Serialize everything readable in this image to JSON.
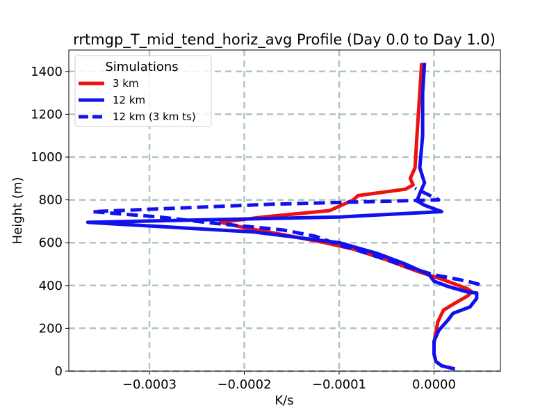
{
  "chart_data": {
    "type": "line",
    "title": "rrtmgp_T_mid_tend_horiz_avg Profile (Day 0.0 to Day 1.0)",
    "xlabel": "K/s",
    "ylabel": "Height (m)",
    "xlim": [
      -0.000385,
      7e-05
    ],
    "ylim": [
      0,
      1500
    ],
    "xticks": [
      -0.0003,
      -0.0002,
      -0.0001,
      0.0
    ],
    "xtick_labels": [
      "−0.0003",
      "−0.0002",
      "−0.0001",
      "0.0000"
    ],
    "yticks": [
      0,
      200,
      400,
      600,
      800,
      1000,
      1200,
      1400
    ],
    "ytick_labels": [
      "0",
      "200",
      "400",
      "600",
      "800",
      "1000",
      "1200",
      "1400"
    ],
    "grid": true,
    "legend": {
      "title": "Simulations",
      "placement": "top-left"
    },
    "series": [
      {
        "name": "3 km",
        "color": "#ee1111",
        "style": "solid",
        "points": [
          [
            2.2e-05,
            10
          ],
          [
            8e-06,
            25
          ],
          [
            2e-06,
            45
          ],
          [
            0.0,
            80
          ],
          [
            0.0,
            130
          ],
          [
            2e-06,
            180
          ],
          [
            4e-06,
            230
          ],
          [
            1e-05,
            285
          ],
          [
            2.5e-05,
            325
          ],
          [
            3.5e-05,
            350
          ],
          [
            4e-05,
            370
          ],
          [
            3.5e-05,
            385
          ],
          [
            8e-06,
            430
          ],
          [
            -2e-05,
            470
          ],
          [
            -5e-05,
            520
          ],
          [
            -8.5e-05,
            570
          ],
          [
            -0.000115,
            600
          ],
          [
            -0.00015,
            630
          ],
          [
            -0.0002,
            670
          ],
          [
            -0.000225,
            695
          ],
          [
            -0.00018,
            720
          ],
          [
            -0.00011,
            750
          ],
          [
            -8.5e-05,
            800
          ],
          [
            -8e-05,
            820
          ],
          [
            -3e-05,
            850
          ],
          [
            -2.2e-05,
            870
          ],
          [
            -2.5e-05,
            900
          ],
          [
            -2e-05,
            950
          ],
          [
            -1.8e-05,
            1100
          ],
          [
            -1.5e-05,
            1300
          ],
          [
            -1.3e-05,
            1440
          ]
        ]
      },
      {
        "name": "12 km",
        "color": "#1111ee",
        "style": "solid",
        "points": [
          [
            2.2e-05,
            10
          ],
          [
            8e-06,
            25
          ],
          [
            2e-06,
            45
          ],
          [
            0.0,
            80
          ],
          [
            0.0,
            140
          ],
          [
            5e-06,
            190
          ],
          [
            1.5e-05,
            240
          ],
          [
            2e-05,
            270
          ],
          [
            3.8e-05,
            300
          ],
          [
            4.5e-05,
            340
          ],
          [
            4.5e-05,
            365
          ],
          [
            3.5e-05,
            370
          ],
          [
            1.5e-05,
            395
          ],
          [
            0.0,
            420
          ],
          [
            -5e-06,
            450
          ],
          [
            -3e-05,
            500
          ],
          [
            -6e-05,
            550
          ],
          [
            -0.0001,
            600
          ],
          [
            -0.00019,
            650
          ],
          [
            -0.000365,
            695
          ],
          [
            -0.0001,
            720
          ],
          [
            8e-06,
            745
          ],
          [
            -1e-05,
            775
          ],
          [
            -1.8e-05,
            795
          ],
          [
            -1.5e-05,
            830
          ],
          [
            -1e-05,
            880
          ],
          [
            -1.5e-05,
            950
          ],
          [
            -1.2e-05,
            1100
          ],
          [
            -1.2e-05,
            1300
          ],
          [
            -1e-05,
            1440
          ]
        ]
      },
      {
        "name": "12 km (3 km ts)",
        "color": "#1111ee",
        "style": "dashed",
        "points": [
          [
            4.8e-05,
            405
          ],
          [
            3.5e-05,
            420
          ],
          [
            0.0,
            450
          ],
          [
            -3e-05,
            490
          ],
          [
            -7e-05,
            550
          ],
          [
            -0.0001,
            590
          ],
          [
            -0.000125,
            630
          ],
          [
            -0.00016,
            660
          ],
          [
            -0.00023,
            690
          ],
          [
            -0.00029,
            720
          ],
          [
            -0.00036,
            745
          ],
          [
            -0.00017,
            780
          ],
          [
            5e-06,
            800
          ],
          [
            -2e-05,
            855
          ]
        ]
      }
    ]
  }
}
